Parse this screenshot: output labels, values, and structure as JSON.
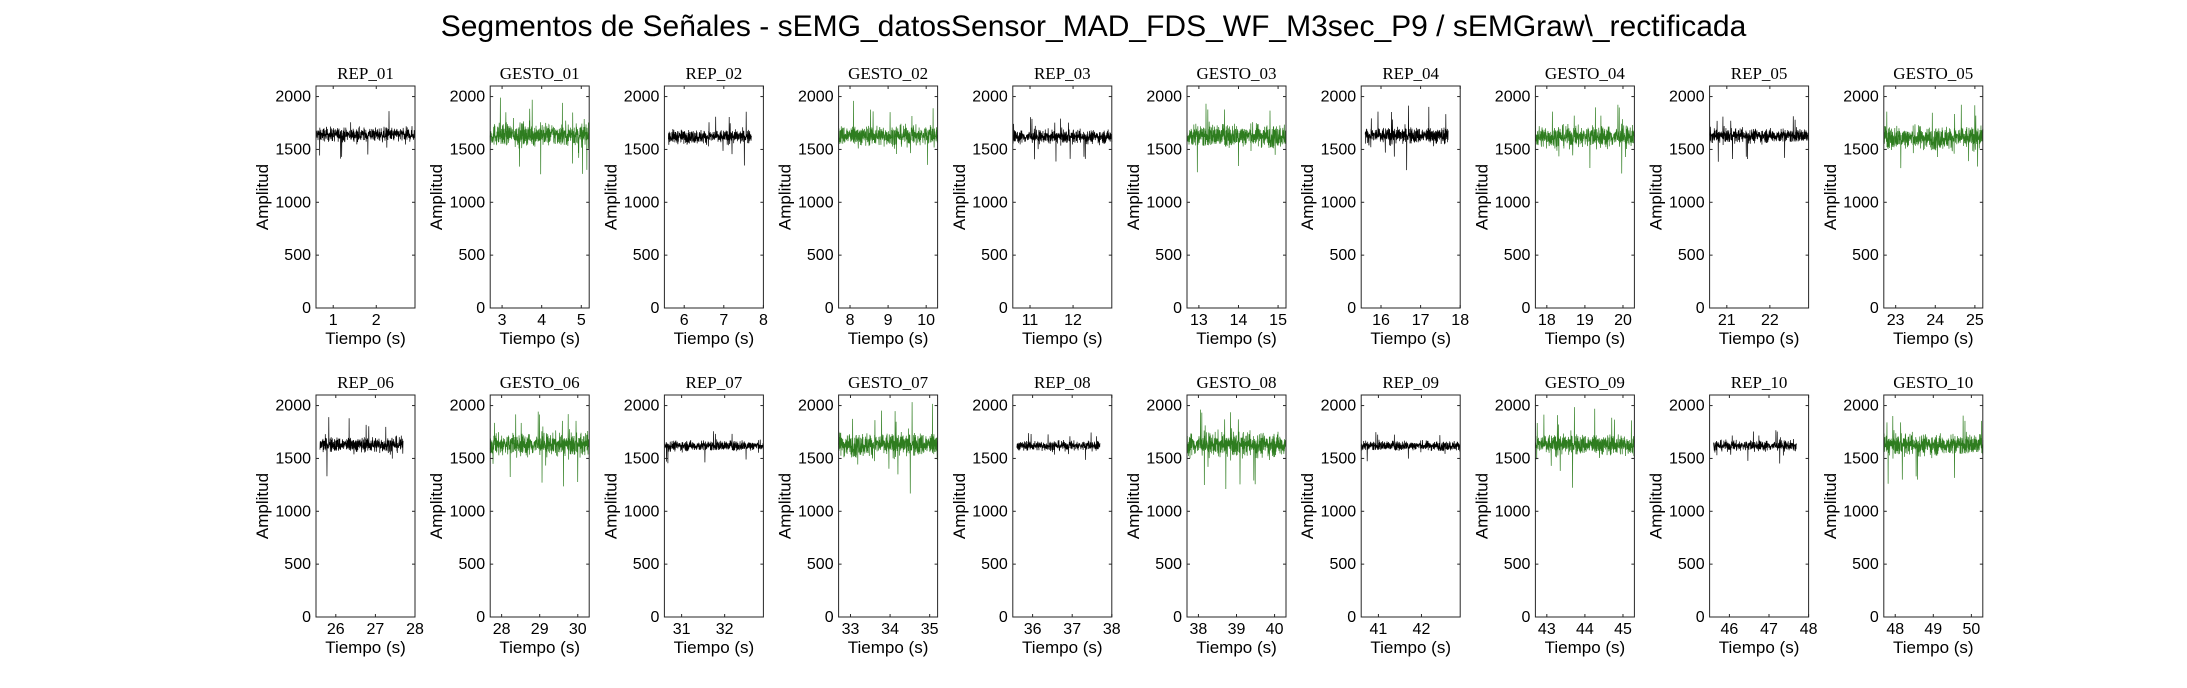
{
  "figure": {
    "title": "Segmentos de Señales - sEMG_datosSensor_MAD_FDS_WF_M3sec_P9 / sEMGraw\\_rectificada",
    "colors": {
      "rep": "#000000",
      "gesto": "#2e7d1f"
    }
  },
  "chart_data": [
    {
      "type": "line",
      "title": "REP_01",
      "xlabel": "Tiempo (s)",
      "ylabel": "Amplitud",
      "xlim": [
        0.6,
        2.9
      ],
      "xticks": [
        "1",
        "2"
      ],
      "ylim": [
        0,
        2100
      ],
      "yticks": [
        "0",
        "500",
        "1000",
        "1500",
        "2000"
      ],
      "data_range": [
        0.6,
        2.9
      ],
      "kind": "rep",
      "baseline": 1640,
      "spread": 200
    },
    {
      "type": "line",
      "title": "GESTO_01",
      "xlabel": "Tiempo (s)",
      "ylabel": "Amplitud",
      "xlim": [
        2.7,
        5.2
      ],
      "xticks": [
        "3",
        "4",
        "5"
      ],
      "ylim": [
        0,
        2100
      ],
      "yticks": [
        "0",
        "500",
        "1000",
        "1500",
        "2000"
      ],
      "data_range": [
        2.7,
        5.2
      ],
      "kind": "gesto",
      "baseline": 1640,
      "spread": 320
    },
    {
      "type": "line",
      "title": "REP_02",
      "xlabel": "Tiempo (s)",
      "ylabel": "Amplitud",
      "xlim": [
        5.5,
        8.0
      ],
      "xticks": [
        "6",
        "7",
        "8"
      ],
      "ylim": [
        0,
        2100
      ],
      "yticks": [
        "0",
        "500",
        "1000",
        "1500",
        "2000"
      ],
      "data_range": [
        5.6,
        7.7
      ],
      "kind": "rep",
      "baseline": 1620,
      "spread": 200
    },
    {
      "type": "line",
      "title": "GESTO_02",
      "xlabel": "Tiempo (s)",
      "ylabel": "Amplitud",
      "xlim": [
        7.7,
        10.3
      ],
      "xticks": [
        "8",
        "9",
        "10"
      ],
      "ylim": [
        0,
        2100
      ],
      "yticks": [
        "0",
        "500",
        "1000",
        "1500",
        "2000"
      ],
      "data_range": [
        7.7,
        10.3
      ],
      "kind": "gesto",
      "baseline": 1630,
      "spread": 290
    },
    {
      "type": "line",
      "title": "REP_03",
      "xlabel": "Tiempo (s)",
      "ylabel": "Amplitud",
      "xlim": [
        10.6,
        12.9
      ],
      "xticks": [
        "11",
        "12"
      ],
      "ylim": [
        0,
        2100
      ],
      "yticks": [
        "0",
        "500",
        "1000",
        "1500",
        "2000"
      ],
      "data_range": [
        10.6,
        12.9
      ],
      "kind": "rep",
      "baseline": 1620,
      "spread": 190
    },
    {
      "type": "line",
      "title": "GESTO_03",
      "xlabel": "Tiempo (s)",
      "ylabel": "Amplitud",
      "xlim": [
        12.7,
        15.2
      ],
      "xticks": [
        "13",
        "14",
        "15"
      ],
      "ylim": [
        0,
        2100
      ],
      "yticks": [
        "0",
        "500",
        "1000",
        "1500",
        "2000"
      ],
      "data_range": [
        12.7,
        15.2
      ],
      "kind": "gesto",
      "baseline": 1630,
      "spread": 330
    },
    {
      "type": "line",
      "title": "REP_04",
      "xlabel": "Tiempo (s)",
      "ylabel": "Amplitud",
      "xlim": [
        15.5,
        18.0
      ],
      "xticks": [
        "16",
        "17",
        "18"
      ],
      "ylim": [
        0,
        2100
      ],
      "yticks": [
        "0",
        "500",
        "1000",
        "1500",
        "2000"
      ],
      "data_range": [
        15.6,
        17.7
      ],
      "kind": "rep",
      "baseline": 1630,
      "spread": 240
    },
    {
      "type": "line",
      "title": "GESTO_04",
      "xlabel": "Tiempo (s)",
      "ylabel": "Amplitud",
      "xlim": [
        17.7,
        20.3
      ],
      "xticks": [
        "18",
        "19",
        "20"
      ],
      "ylim": [
        0,
        2100
      ],
      "yticks": [
        "0",
        "500",
        "1000",
        "1500",
        "2000"
      ],
      "data_range": [
        17.7,
        20.3
      ],
      "kind": "gesto",
      "baseline": 1620,
      "spread": 310
    },
    {
      "type": "line",
      "title": "REP_05",
      "xlabel": "Tiempo (s)",
      "ylabel": "Amplitud",
      "xlim": [
        20.6,
        22.9
      ],
      "xticks": [
        "21",
        "22"
      ],
      "ylim": [
        0,
        2100
      ],
      "yticks": [
        "0",
        "500",
        "1000",
        "1500",
        "2000"
      ],
      "data_range": [
        20.6,
        22.9
      ],
      "kind": "rep",
      "baseline": 1630,
      "spread": 200
    },
    {
      "type": "line",
      "title": "GESTO_05",
      "xlabel": "Tiempo (s)",
      "ylabel": "Amplitud",
      "xlim": [
        22.7,
        25.2
      ],
      "xticks": [
        "23",
        "24",
        "25"
      ],
      "ylim": [
        0,
        2100
      ],
      "yticks": [
        "0",
        "500",
        "1000",
        "1500",
        "2000"
      ],
      "data_range": [
        22.7,
        25.2
      ],
      "kind": "gesto",
      "baseline": 1610,
      "spread": 330
    },
    {
      "type": "line",
      "title": "REP_06",
      "xlabel": "Tiempo (s)",
      "ylabel": "Amplitud",
      "xlim": [
        25.5,
        28.0
      ],
      "xticks": [
        "26",
        "27",
        "28"
      ],
      "ylim": [
        0,
        2100
      ],
      "yticks": [
        "0",
        "500",
        "1000",
        "1500",
        "2000"
      ],
      "data_range": [
        25.6,
        27.7
      ],
      "kind": "rep",
      "baseline": 1630,
      "spread": 220
    },
    {
      "type": "line",
      "title": "GESTO_06",
      "xlabel": "Tiempo (s)",
      "ylabel": "Amplitud",
      "xlim": [
        27.7,
        30.3
      ],
      "xticks": [
        "28",
        "29",
        "30"
      ],
      "ylim": [
        0,
        2100
      ],
      "yticks": [
        "0",
        "500",
        "1000",
        "1500",
        "2000"
      ],
      "data_range": [
        27.7,
        30.3
      ],
      "kind": "gesto",
      "baseline": 1630,
      "spread": 320
    },
    {
      "type": "line",
      "title": "REP_07",
      "xlabel": "Tiempo (s)",
      "ylabel": "Amplitud",
      "xlim": [
        30.6,
        32.9
      ],
      "xticks": [
        "31",
        "32"
      ],
      "ylim": [
        0,
        2100
      ],
      "yticks": [
        "0",
        "500",
        "1000",
        "1500",
        "2000"
      ],
      "data_range": [
        30.6,
        32.9
      ],
      "kind": "rep",
      "baseline": 1620,
      "spread": 150
    },
    {
      "type": "line",
      "title": "GESTO_07",
      "xlabel": "Tiempo (s)",
      "ylabel": "Amplitud",
      "xlim": [
        32.7,
        35.2
      ],
      "xticks": [
        "33",
        "34",
        "35"
      ],
      "ylim": [
        0,
        2100
      ],
      "yticks": [
        "0",
        "500",
        "1000",
        "1500",
        "2000"
      ],
      "data_range": [
        32.7,
        35.2
      ],
      "kind": "gesto",
      "baseline": 1630,
      "spread": 340
    },
    {
      "type": "line",
      "title": "REP_08",
      "xlabel": "Tiempo (s)",
      "ylabel": "Amplitud",
      "xlim": [
        35.5,
        38.0
      ],
      "xticks": [
        "36",
        "37",
        "38"
      ],
      "ylim": [
        0,
        2100
      ],
      "yticks": [
        "0",
        "500",
        "1000",
        "1500",
        "2000"
      ],
      "data_range": [
        35.6,
        37.7
      ],
      "kind": "rep",
      "baseline": 1620,
      "spread": 140
    },
    {
      "type": "line",
      "title": "GESTO_08",
      "xlabel": "Tiempo (s)",
      "ylabel": "Amplitud",
      "xlim": [
        37.7,
        40.3
      ],
      "xticks": [
        "38",
        "39",
        "40"
      ],
      "ylim": [
        0,
        2100
      ],
      "yticks": [
        "0",
        "500",
        "1000",
        "1500",
        "2000"
      ],
      "data_range": [
        37.7,
        40.3
      ],
      "kind": "gesto",
      "baseline": 1630,
      "spread": 340
    },
    {
      "type": "line",
      "title": "REP_09",
      "xlabel": "Tiempo (s)",
      "ylabel": "Amplitud",
      "xlim": [
        40.6,
        42.9
      ],
      "xticks": [
        "41",
        "42"
      ],
      "ylim": [
        0,
        2100
      ],
      "yticks": [
        "0",
        "500",
        "1000",
        "1500",
        "2000"
      ],
      "data_range": [
        40.6,
        42.9
      ],
      "kind": "rep",
      "baseline": 1620,
      "spread": 140
    },
    {
      "type": "line",
      "title": "GESTO_09",
      "xlabel": "Tiempo (s)",
      "ylabel": "Amplitud",
      "xlim": [
        42.7,
        45.3
      ],
      "xticks": [
        "43",
        "44",
        "45"
      ],
      "ylim": [
        0,
        2100
      ],
      "yticks": [
        "0",
        "500",
        "1000",
        "1500",
        "2000"
      ],
      "data_range": [
        42.7,
        45.3
      ],
      "kind": "gesto",
      "baseline": 1630,
      "spread": 300
    },
    {
      "type": "line",
      "title": "REP_10",
      "xlabel": "Tiempo (s)",
      "ylabel": "Amplitud",
      "xlim": [
        45.5,
        48.0
      ],
      "xticks": [
        "46",
        "47",
        "48"
      ],
      "ylim": [
        0,
        2100
      ],
      "yticks": [
        "0",
        "500",
        "1000",
        "1500",
        "2000"
      ],
      "data_range": [
        45.6,
        47.7
      ],
      "kind": "rep",
      "baseline": 1620,
      "spread": 150
    },
    {
      "type": "line",
      "title": "GESTO_10",
      "xlabel": "Tiempo (s)",
      "ylabel": "Amplitud",
      "xlim": [
        47.7,
        50.3
      ],
      "xticks": [
        "48",
        "49",
        "50"
      ],
      "ylim": [
        0,
        2100
      ],
      "yticks": [
        "0",
        "500",
        "1000",
        "1500",
        "2000"
      ],
      "data_range": [
        47.7,
        50.3
      ],
      "kind": "gesto",
      "baseline": 1630,
      "spread": 300
    }
  ]
}
